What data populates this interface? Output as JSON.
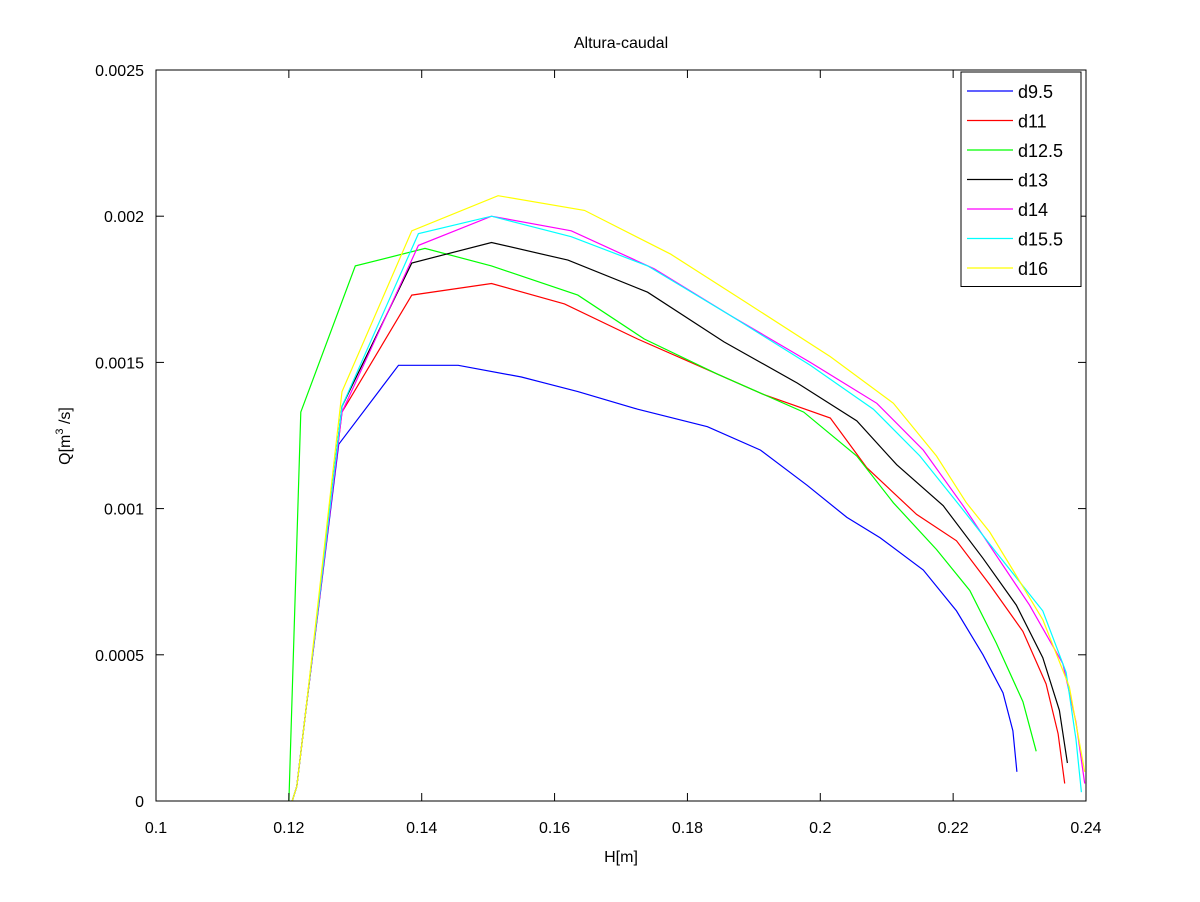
{
  "chart_data": {
    "type": "line",
    "title": "Altura-caudal",
    "xlabel": "H[m]",
    "ylabel": {
      "base": "Q[m",
      "sup": "3",
      "tail": " /s]"
    },
    "xlim": [
      0.1,
      0.24
    ],
    "ylim": [
      0,
      0.0025
    ],
    "xticks": [
      0.1,
      0.12,
      0.14,
      0.16,
      0.18,
      0.2,
      0.22,
      0.24
    ],
    "xtick_labels": [
      "0.1",
      "0.12",
      "0.14",
      "0.16",
      "0.18",
      "0.2",
      "0.22",
      "0.24"
    ],
    "yticks": [
      0,
      0.0005,
      0.001,
      0.0015,
      0.002,
      0.0025
    ],
    "ytick_labels": [
      "0",
      "0.0005",
      "0.001",
      "0.0015",
      "0.002",
      "0.0025"
    ],
    "grid": false,
    "legend_position": "top-right",
    "series": [
      {
        "name": "d9.5",
        "color": "#0000ff",
        "x": [
          0.1205,
          0.1212,
          0.1225,
          0.1275,
          0.1365,
          0.1455,
          0.155,
          0.1635,
          0.1725,
          0.183,
          0.191,
          0.198,
          0.204,
          0.209,
          0.2155,
          0.2205,
          0.2245,
          0.2275,
          0.229,
          0.2296
        ],
        "y": [
          0,
          5e-05,
          0.0003,
          0.00122,
          0.00149,
          0.00149,
          0.00145,
          0.0014,
          0.00134,
          0.00128,
          0.0012,
          0.00108,
          0.00097,
          0.0009,
          0.00079,
          0.00065,
          0.0005,
          0.00037,
          0.00024,
          0.0001
        ]
      },
      {
        "name": "d11",
        "color": "#ff0000",
        "x": [
          0.1205,
          0.1212,
          0.1225,
          0.128,
          0.1385,
          0.1505,
          0.1615,
          0.1725,
          0.1825,
          0.1915,
          0.2015,
          0.207,
          0.2145,
          0.2205,
          0.2255,
          0.2305,
          0.234,
          0.2358,
          0.2368
        ],
        "y": [
          0,
          5e-05,
          0.0003,
          0.00133,
          0.00173,
          0.00177,
          0.0017,
          0.00158,
          0.00148,
          0.00139,
          0.00131,
          0.00114,
          0.00098,
          0.00089,
          0.00074,
          0.00058,
          0.0004,
          0.00023,
          6e-05
        ]
      },
      {
        "name": "d12.5",
        "color": "#00ff00",
        "x": [
          0.12,
          0.1218,
          0.13,
          0.1405,
          0.1505,
          0.1635,
          0.1735,
          0.1845,
          0.1975,
          0.2055,
          0.211,
          0.2175,
          0.2225,
          0.2265,
          0.2305,
          0.2325
        ],
        "y": [
          0,
          0.00133,
          0.00183,
          0.00189,
          0.00183,
          0.00173,
          0.00158,
          0.00146,
          0.00133,
          0.00118,
          0.00102,
          0.00086,
          0.00072,
          0.00054,
          0.00034,
          0.00017
        ]
      },
      {
        "name": "d13",
        "color": "#000000",
        "x": [
          0.1205,
          0.1212,
          0.1225,
          0.128,
          0.1385,
          0.1505,
          0.162,
          0.174,
          0.1855,
          0.1965,
          0.2055,
          0.2115,
          0.2185,
          0.2245,
          0.2295,
          0.2335,
          0.236,
          0.2372
        ],
        "y": [
          0,
          5e-05,
          0.0003,
          0.00135,
          0.00184,
          0.00191,
          0.00185,
          0.00174,
          0.00157,
          0.00143,
          0.0013,
          0.00115,
          0.00101,
          0.00083,
          0.00067,
          0.00049,
          0.00031,
          0.00013
        ]
      },
      {
        "name": "d14",
        "color": "#ff00ff",
        "x": [
          0.1205,
          0.1212,
          0.1225,
          0.128,
          0.1395,
          0.1505,
          0.1625,
          0.175,
          0.1865,
          0.1985,
          0.2085,
          0.2155,
          0.2215,
          0.2265,
          0.2315,
          0.2365,
          0.2385,
          0.2398
        ],
        "y": [
          0,
          5e-05,
          0.0003,
          0.00133,
          0.0019,
          0.002,
          0.00195,
          0.00182,
          0.00166,
          0.0015,
          0.00136,
          0.0012,
          0.00101,
          0.00084,
          0.00067,
          0.00047,
          0.00027,
          6e-05
        ]
      },
      {
        "name": "d15.5",
        "color": "#00ffff",
        "x": [
          0.1205,
          0.1212,
          0.1225,
          0.128,
          0.1395,
          0.1505,
          0.1625,
          0.174,
          0.1865,
          0.1985,
          0.208,
          0.215,
          0.221,
          0.2265,
          0.2335,
          0.237,
          0.2385,
          0.2393
        ],
        "y": [
          0,
          5e-05,
          0.0003,
          0.00135,
          0.00194,
          0.002,
          0.00193,
          0.00183,
          0.00166,
          0.00149,
          0.00134,
          0.00118,
          0.00101,
          0.00085,
          0.00065,
          0.00044,
          0.00021,
          3e-05
        ]
      },
      {
        "name": "d16",
        "color": "#ffff00",
        "x": [
          0.1205,
          0.1212,
          0.1225,
          0.128,
          0.1385,
          0.1515,
          0.1645,
          0.1775,
          0.1885,
          0.2015,
          0.211,
          0.2175,
          0.222,
          0.2255,
          0.229,
          0.2335,
          0.2375,
          0.2398
        ],
        "y": [
          0,
          5e-05,
          0.0003,
          0.0014,
          0.00195,
          0.00207,
          0.00202,
          0.00187,
          0.00171,
          0.00152,
          0.00136,
          0.00118,
          0.00102,
          0.00092,
          0.00079,
          0.00062,
          0.00039,
          0.0001
        ]
      }
    ]
  }
}
